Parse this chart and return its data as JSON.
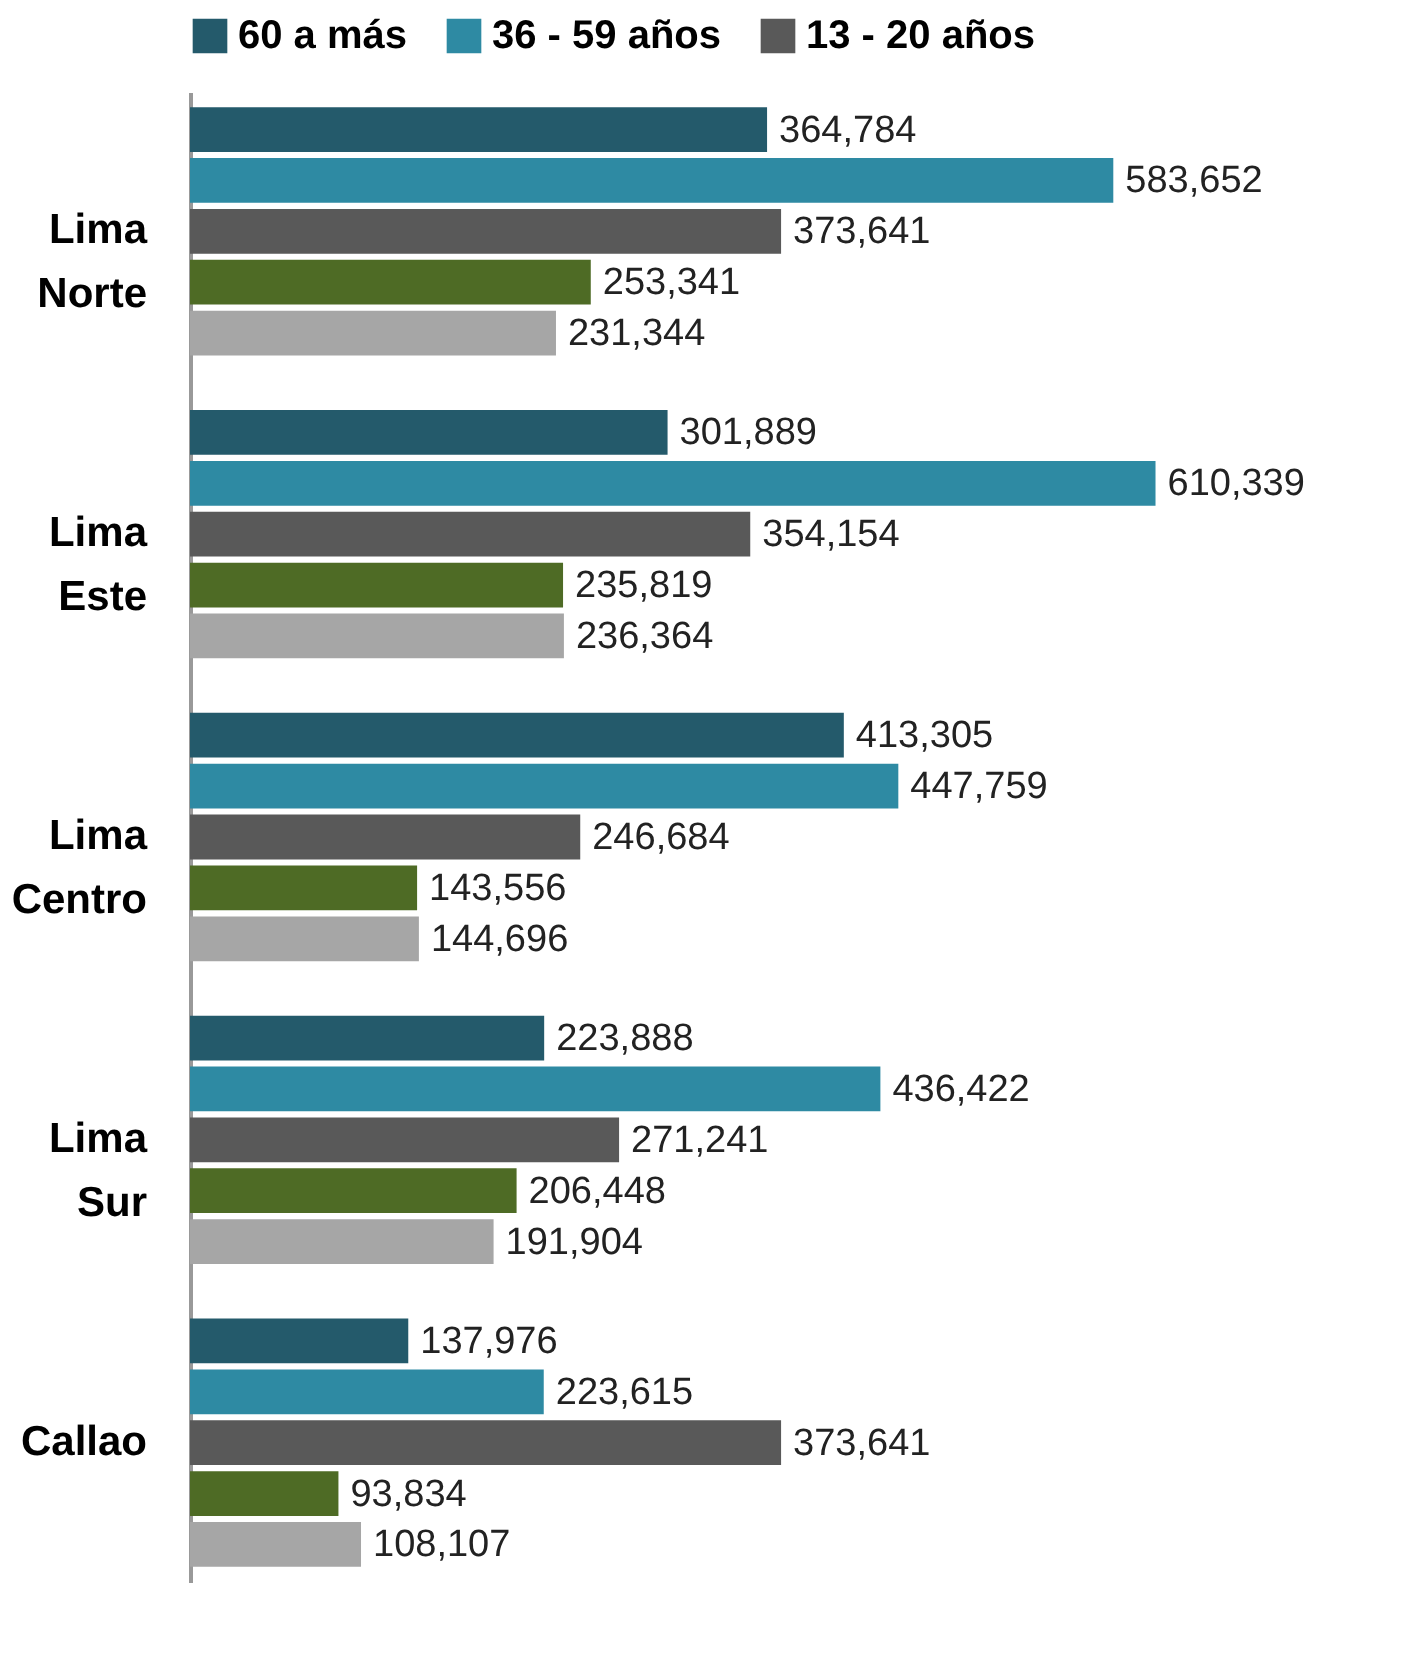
{
  "chart_data": {
    "type": "bar",
    "orientation": "horizontal",
    "legend": "top",
    "categories": [
      "Lima Norte",
      "Lima Este",
      "Lima Centro",
      "Lima Sur",
      "Callao"
    ],
    "series": [
      {
        "name": "60 a más",
        "color": "#245a6b",
        "values": [
          364784,
          301889,
          413305,
          223888,
          137976
        ],
        "value_labels": [
          "364,784",
          "301,889",
          "413,305",
          "223,888",
          "137,976"
        ]
      },
      {
        "name": "36 - 59 años",
        "color": "#2e8aa3",
        "values": [
          583652,
          610339,
          447759,
          436422,
          223615
        ],
        "value_labels": [
          "583,652",
          "610,339",
          "447,759",
          "436,422",
          "223,615"
        ]
      },
      {
        "name": "13 - 20 años",
        "color": "#595959",
        "values": [
          373641,
          354154,
          246684,
          271241,
          373641
        ],
        "value_labels": [
          "373,641",
          "354,154",
          "246,684",
          "271,241",
          "373,641"
        ]
      },
      {
        "color": "#4e6b25",
        "values": [
          253341,
          235819,
          143556,
          206448,
          93834
        ],
        "value_labels": [
          "253,341",
          "235,819",
          "143,556",
          "206,448",
          "93,834"
        ]
      },
      {
        "color": "#a6a6a6",
        "values": [
          231344,
          236364,
          144696,
          191904,
          108107
        ],
        "value_labels": [
          "231,344",
          "236,364",
          "144,696",
          "191,904",
          "108,107"
        ]
      }
    ]
  }
}
